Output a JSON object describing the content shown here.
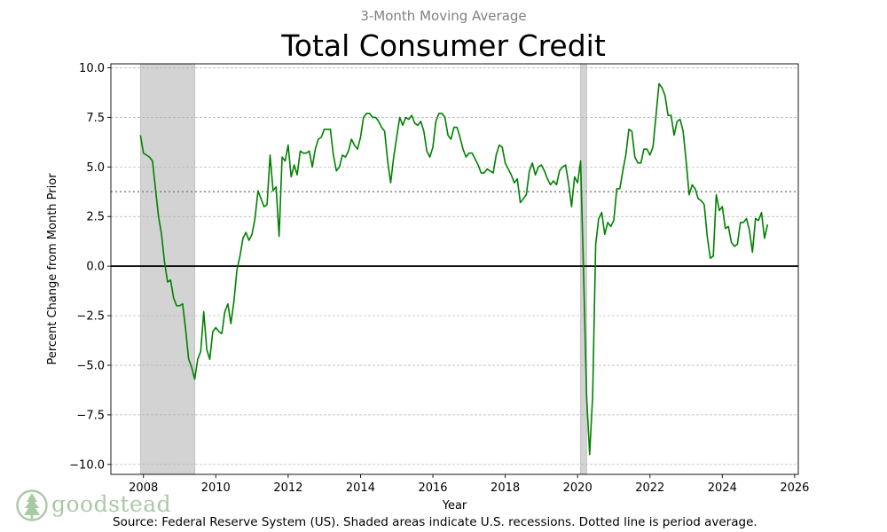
{
  "chart_data": {
    "type": "line",
    "subtitle": "3-Month Moving Average",
    "title": "Total Consumer Credit",
    "xlabel": "Year",
    "ylabel": "Percent Change from Month Prior",
    "xlim": [
      2007.1,
      2026.1
    ],
    "ylim": [
      -10.5,
      10.2
    ],
    "yticks": [
      10.0,
      7.5,
      5.0,
      2.5,
      0.0,
      -2.5,
      -5.0,
      -7.5,
      -10.0
    ],
    "ytick_labels": [
      "10.0",
      "7.5",
      "5.0",
      "2.5",
      "0.0",
      "−2.5",
      "−5.0",
      "−7.5",
      "−10.0"
    ],
    "xticks": [
      2008,
      2010,
      2012,
      2014,
      2016,
      2018,
      2020,
      2022,
      2024,
      2026
    ],
    "xtick_labels": [
      "2008",
      "2010",
      "2012",
      "2014",
      "2016",
      "2018",
      "2020",
      "2022",
      "2024",
      "2026"
    ],
    "grid": "horizontal dashed",
    "average": 3.75,
    "recessions": [
      [
        2007.92,
        2009.42
      ],
      [
        2020.08,
        2020.25
      ]
    ],
    "colors": {
      "line": "#008000",
      "recession": "#d3d3d3",
      "average": "#808080",
      "zero": "#000000",
      "grid": "#b0b0b0"
    },
    "series": [
      {
        "points": [
          [
            2007.917,
            6.6
          ],
          [
            2008.0,
            5.7
          ],
          [
            2008.083,
            5.6
          ],
          [
            2008.167,
            5.5
          ],
          [
            2008.25,
            5.3
          ],
          [
            2008.333,
            3.9
          ],
          [
            2008.417,
            2.5
          ],
          [
            2008.5,
            1.6
          ],
          [
            2008.583,
            0.2
          ],
          [
            2008.667,
            -0.8
          ],
          [
            2008.75,
            -0.7
          ],
          [
            2008.833,
            -1.6
          ],
          [
            2008.917,
            -2.0
          ],
          [
            2009.0,
            -2.0
          ],
          [
            2009.083,
            -1.9
          ],
          [
            2009.167,
            -3.2
          ],
          [
            2009.25,
            -4.7
          ],
          [
            2009.333,
            -5.1
          ],
          [
            2009.417,
            -5.7
          ],
          [
            2009.5,
            -4.7
          ],
          [
            2009.583,
            -4.3
          ],
          [
            2009.667,
            -2.3
          ],
          [
            2009.75,
            -4.2
          ],
          [
            2009.833,
            -4.7
          ],
          [
            2009.917,
            -3.3
          ],
          [
            2010.0,
            -3.1
          ],
          [
            2010.083,
            -3.3
          ],
          [
            2010.167,
            -3.4
          ],
          [
            2010.25,
            -2.3
          ],
          [
            2010.333,
            -1.9
          ],
          [
            2010.417,
            -2.9
          ],
          [
            2010.5,
            -1.8
          ],
          [
            2010.583,
            -0.2
          ],
          [
            2010.667,
            0.5
          ],
          [
            2010.75,
            1.4
          ],
          [
            2010.833,
            1.7
          ],
          [
            2010.917,
            1.3
          ],
          [
            2011.0,
            1.6
          ],
          [
            2011.083,
            2.4
          ],
          [
            2011.167,
            3.8
          ],
          [
            2011.25,
            3.4
          ],
          [
            2011.333,
            3.0
          ],
          [
            2011.417,
            3.1
          ],
          [
            2011.5,
            5.6
          ],
          [
            2011.583,
            3.8
          ],
          [
            2011.667,
            4.0
          ],
          [
            2011.75,
            1.5
          ],
          [
            2011.833,
            5.5
          ],
          [
            2011.917,
            5.3
          ],
          [
            2012.0,
            6.1
          ],
          [
            2012.083,
            4.5
          ],
          [
            2012.167,
            5.1
          ],
          [
            2012.25,
            4.6
          ],
          [
            2012.333,
            5.8
          ],
          [
            2012.417,
            5.7
          ],
          [
            2012.5,
            5.7
          ],
          [
            2012.583,
            5.8
          ],
          [
            2012.667,
            5.0
          ],
          [
            2012.75,
            5.9
          ],
          [
            2012.833,
            6.4
          ],
          [
            2012.917,
            6.5
          ],
          [
            2013.0,
            6.9
          ],
          [
            2013.083,
            6.9
          ],
          [
            2013.167,
            6.9
          ],
          [
            2013.25,
            5.6
          ],
          [
            2013.333,
            4.8
          ],
          [
            2013.417,
            5.0
          ],
          [
            2013.5,
            5.6
          ],
          [
            2013.583,
            5.5
          ],
          [
            2013.667,
            5.8
          ],
          [
            2013.75,
            6.4
          ],
          [
            2013.833,
            6.1
          ],
          [
            2013.917,
            5.9
          ],
          [
            2014.0,
            6.5
          ],
          [
            2014.083,
            7.5
          ],
          [
            2014.167,
            7.7
          ],
          [
            2014.25,
            7.7
          ],
          [
            2014.333,
            7.5
          ],
          [
            2014.417,
            7.5
          ],
          [
            2014.5,
            7.3
          ],
          [
            2014.583,
            7.0
          ],
          [
            2014.667,
            6.8
          ],
          [
            2014.75,
            5.3
          ],
          [
            2014.833,
            4.2
          ],
          [
            2014.917,
            5.5
          ],
          [
            2015.0,
            6.5
          ],
          [
            2015.083,
            7.5
          ],
          [
            2015.167,
            7.1
          ],
          [
            2015.25,
            7.5
          ],
          [
            2015.333,
            7.4
          ],
          [
            2015.417,
            7.6
          ],
          [
            2015.5,
            7.2
          ],
          [
            2015.583,
            7.1
          ],
          [
            2015.667,
            7.3
          ],
          [
            2015.75,
            6.8
          ],
          [
            2015.833,
            5.8
          ],
          [
            2015.917,
            5.5
          ],
          [
            2016.0,
            6.0
          ],
          [
            2016.083,
            7.3
          ],
          [
            2016.167,
            7.7
          ],
          [
            2016.25,
            7.7
          ],
          [
            2016.333,
            7.5
          ],
          [
            2016.417,
            6.6
          ],
          [
            2016.5,
            6.4
          ],
          [
            2016.583,
            7.0
          ],
          [
            2016.667,
            7.0
          ],
          [
            2016.75,
            6.5
          ],
          [
            2016.833,
            5.9
          ],
          [
            2016.917,
            5.5
          ],
          [
            2017.0,
            5.7
          ],
          [
            2017.083,
            5.7
          ],
          [
            2017.167,
            5.4
          ],
          [
            2017.25,
            5.1
          ],
          [
            2017.333,
            4.7
          ],
          [
            2017.417,
            4.7
          ],
          [
            2017.5,
            4.9
          ],
          [
            2017.583,
            4.8
          ],
          [
            2017.667,
            4.7
          ],
          [
            2017.75,
            5.6
          ],
          [
            2017.833,
            6.1
          ],
          [
            2017.917,
            6.0
          ],
          [
            2018.0,
            5.2
          ],
          [
            2018.083,
            4.9
          ],
          [
            2018.167,
            4.6
          ],
          [
            2018.25,
            4.2
          ],
          [
            2018.333,
            4.4
          ],
          [
            2018.417,
            3.2
          ],
          [
            2018.5,
            3.4
          ],
          [
            2018.583,
            3.6
          ],
          [
            2018.667,
            4.8
          ],
          [
            2018.75,
            5.2
          ],
          [
            2018.833,
            4.6
          ],
          [
            2018.917,
            5.0
          ],
          [
            2019.0,
            5.1
          ],
          [
            2019.083,
            4.8
          ],
          [
            2019.167,
            4.4
          ],
          [
            2019.25,
            4.1
          ],
          [
            2019.333,
            4.3
          ],
          [
            2019.417,
            4.1
          ],
          [
            2019.5,
            4.8
          ],
          [
            2019.583,
            5.0
          ],
          [
            2019.667,
            5.1
          ],
          [
            2019.75,
            4.2
          ],
          [
            2019.833,
            3.0
          ],
          [
            2019.917,
            4.5
          ],
          [
            2020.0,
            4.2
          ],
          [
            2020.083,
            5.3
          ],
          [
            2020.167,
            -0.5
          ],
          [
            2020.25,
            -6.6
          ],
          [
            2020.333,
            -9.5
          ],
          [
            2020.417,
            -6.5
          ],
          [
            2020.5,
            1.1
          ],
          [
            2020.583,
            2.4
          ],
          [
            2020.667,
            2.7
          ],
          [
            2020.75,
            1.6
          ],
          [
            2020.833,
            2.2
          ],
          [
            2020.917,
            2.0
          ],
          [
            2021.0,
            2.3
          ],
          [
            2021.083,
            3.9
          ],
          [
            2021.167,
            3.9
          ],
          [
            2021.25,
            4.8
          ],
          [
            2021.333,
            5.6
          ],
          [
            2021.417,
            6.9
          ],
          [
            2021.5,
            6.8
          ],
          [
            2021.583,
            5.5
          ],
          [
            2021.667,
            5.2
          ],
          [
            2021.75,
            5.2
          ],
          [
            2021.833,
            5.9
          ],
          [
            2021.917,
            5.9
          ],
          [
            2022.0,
            5.6
          ],
          [
            2022.083,
            6.0
          ],
          [
            2022.167,
            7.6
          ],
          [
            2022.25,
            9.2
          ],
          [
            2022.333,
            9.0
          ],
          [
            2022.417,
            8.6
          ],
          [
            2022.5,
            7.6
          ],
          [
            2022.583,
            7.6
          ],
          [
            2022.667,
            6.6
          ],
          [
            2022.75,
            7.3
          ],
          [
            2022.833,
            7.4
          ],
          [
            2022.917,
            6.8
          ],
          [
            2023.0,
            5.3
          ],
          [
            2023.083,
            3.6
          ],
          [
            2023.167,
            4.1
          ],
          [
            2023.25,
            3.9
          ],
          [
            2023.333,
            3.4
          ],
          [
            2023.417,
            3.3
          ],
          [
            2023.5,
            3.1
          ],
          [
            2023.583,
            1.5
          ],
          [
            2023.667,
            0.4
          ],
          [
            2023.75,
            0.5
          ],
          [
            2023.833,
            3.6
          ],
          [
            2023.917,
            2.8
          ],
          [
            2024.0,
            3.0
          ],
          [
            2024.083,
            1.9
          ],
          [
            2024.167,
            2.0
          ],
          [
            2024.25,
            1.2
          ],
          [
            2024.333,
            1.0
          ],
          [
            2024.417,
            1.1
          ],
          [
            2024.5,
            2.2
          ],
          [
            2024.583,
            2.2
          ],
          [
            2024.667,
            2.4
          ],
          [
            2024.75,
            1.8
          ],
          [
            2024.833,
            0.7
          ],
          [
            2024.917,
            2.4
          ],
          [
            2025.0,
            2.3
          ],
          [
            2025.083,
            2.7
          ],
          [
            2025.167,
            1.4
          ],
          [
            2025.25,
            2.1
          ]
        ]
      }
    ]
  },
  "source": "Source: Federal Reserve System (US). Shaded areas indicate U.S. recessions. Dotted line is period average.",
  "logo": {
    "text": "goodstead",
    "icon": "tree-logo-icon",
    "color": "#a9c9a4"
  }
}
